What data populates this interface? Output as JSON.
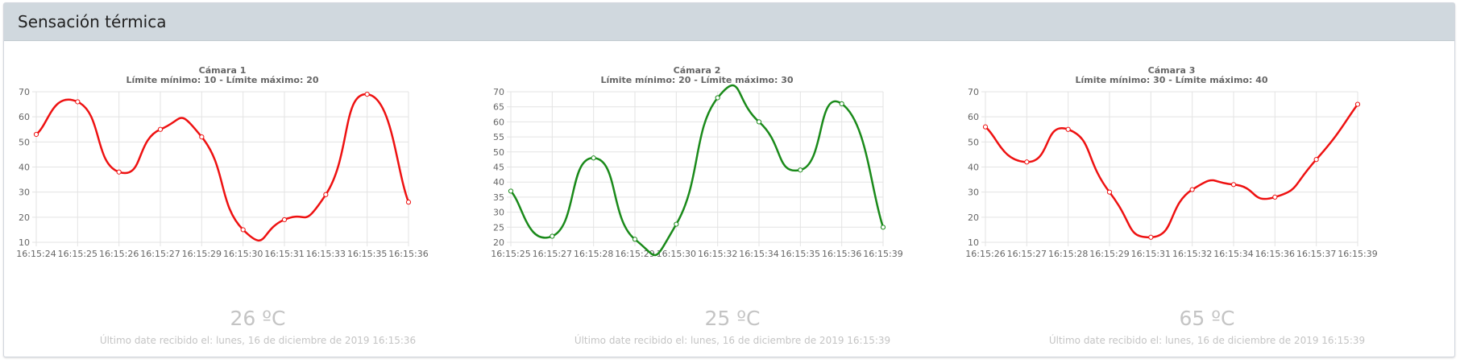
{
  "panel": {
    "title": "Sensación térmica"
  },
  "colors": {
    "red": "#ee1111",
    "green": "#1a8a1a",
    "grid": "#e3e3e3",
    "muted": "#c4c4c4"
  },
  "chart_data": [
    {
      "type": "line",
      "title": "Cámara 1",
      "subtitle": "Límite mínimo: 10 - Límite máximo: 20",
      "categories": [
        "16:15:24",
        "16:15:25",
        "16:15:26",
        "16:15:27",
        "16:15:29",
        "16:15:30",
        "16:15:31",
        "16:15:33",
        "16:15:35",
        "16:15:36"
      ],
      "series": [
        {
          "color": "#ee1111",
          "values": [
            53,
            66,
            38,
            55,
            52,
            15,
            19,
            29,
            69,
            26
          ]
        }
      ],
      "ylim": [
        10,
        70
      ],
      "yticks": [
        10,
        20,
        30,
        40,
        50,
        60,
        70
      ],
      "grid": true,
      "current": "26 ºC",
      "last_received": "Último date recibido el: lunes, 16 de diciembre de 2019 16:15:36"
    },
    {
      "type": "line",
      "title": "Cámara 2",
      "subtitle": "Límite mínimo: 20 - Límite máximo: 30",
      "categories": [
        "16:15:25",
        "16:15:27",
        "16:15:28",
        "16:15:29",
        "16:15:30",
        "16:15:32",
        "16:15:34",
        "16:15:35",
        "16:15:36",
        "16:15:39"
      ],
      "series": [
        {
          "color": "#1a8a1a",
          "values": [
            37,
            22,
            48,
            21,
            26,
            68,
            60,
            44,
            66,
            25
          ]
        }
      ],
      "ylim": [
        20,
        70
      ],
      "yticks": [
        20,
        25,
        30,
        35,
        40,
        45,
        50,
        55,
        60,
        65,
        70
      ],
      "grid": true,
      "current": "25 ºC",
      "last_received": "Último date recibido el: lunes, 16 de diciembre de 2019 16:15:39"
    },
    {
      "type": "line",
      "title": "Cámara 3",
      "subtitle": "Límite mínimo: 30 - Límite máximo: 40",
      "categories": [
        "16:15:26",
        "16:15:27",
        "16:15:28",
        "16:15:29",
        "16:15:31",
        "16:15:32",
        "16:15:34",
        "16:15:36",
        "16:15:37",
        "16:15:39"
      ],
      "series": [
        {
          "color": "#ee1111",
          "values": [
            56,
            42,
            55,
            30,
            12,
            31,
            33,
            28,
            43,
            65
          ]
        }
      ],
      "ylim": [
        10,
        70
      ],
      "yticks": [
        10,
        20,
        30,
        40,
        50,
        60,
        70
      ],
      "grid": true,
      "current": "65 ºC",
      "last_received": "Último date recibido el: lunes, 16 de diciembre de 2019 16:15:39"
    }
  ]
}
